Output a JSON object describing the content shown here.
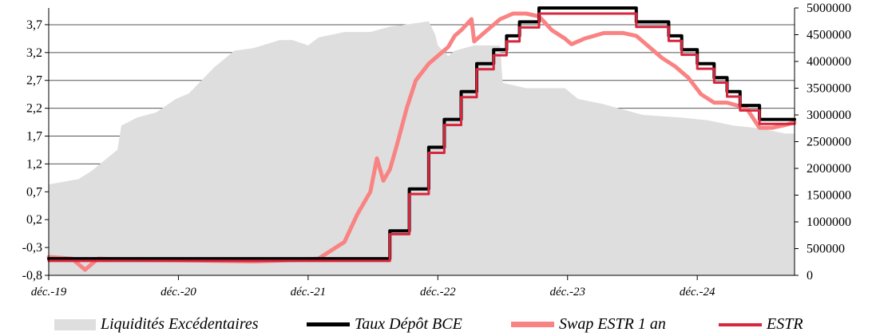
{
  "chart_data": {
    "type": "line",
    "title": "",
    "xlabel": "",
    "ylabel": "",
    "y_left": {
      "ylim": [
        -0.8,
        4.0
      ],
      "ticks": [
        "-0,8",
        "-0,3",
        "0,2",
        "0,7",
        "1,2",
        "1,7",
        "2,2",
        "2,7",
        "3,2",
        "3,7"
      ]
    },
    "y_right": {
      "ylim": [
        0,
        5000000
      ],
      "ticks": [
        "0",
        "500000",
        "1000000",
        "1500000",
        "2000000",
        "2500000",
        "3000000",
        "3500000",
        "4000000",
        "4500000",
        "5000000"
      ]
    },
    "x_range": [
      2019.92,
      2025.67
    ],
    "x_ticks": [
      {
        "label": "déc.-19",
        "x": 2019.92
      },
      {
        "label": "déc.-20",
        "x": 2020.92
      },
      {
        "label": "déc.-21",
        "x": 2021.92
      },
      {
        "label": "déc.-22",
        "x": 2022.92
      },
      {
        "label": "déc.-23",
        "x": 2023.92
      },
      {
        "label": "déc.-24",
        "x": 2024.92
      }
    ],
    "grid": true,
    "legend": "bottom",
    "series": [
      {
        "name": "Liquidités Excédentaires",
        "type": "area",
        "axis": "right",
        "color": "#dedede",
        "points": [
          [
            2019.92,
            1700000
          ],
          [
            2020.15,
            1800000
          ],
          [
            2020.25,
            1950000
          ],
          [
            2020.45,
            2350000
          ],
          [
            2020.48,
            2800000
          ],
          [
            2020.6,
            2950000
          ],
          [
            2020.75,
            3050000
          ],
          [
            2020.9,
            3300000
          ],
          [
            2021.0,
            3400000
          ],
          [
            2021.2,
            3900000
          ],
          [
            2021.35,
            4200000
          ],
          [
            2021.5,
            4250000
          ],
          [
            2021.7,
            4400000
          ],
          [
            2021.8,
            4400000
          ],
          [
            2021.92,
            4300000
          ],
          [
            2022.0,
            4450000
          ],
          [
            2022.2,
            4550000
          ],
          [
            2022.4,
            4550000
          ],
          [
            2022.55,
            4650000
          ],
          [
            2022.7,
            4700000
          ],
          [
            2022.85,
            4750000
          ],
          [
            2022.9,
            4500000
          ],
          [
            2022.92,
            4300000
          ],
          [
            2023.0,
            4100000
          ],
          [
            2023.05,
            4200000
          ],
          [
            2023.2,
            4300000
          ],
          [
            2023.4,
            4300000
          ],
          [
            2023.42,
            3600000
          ],
          [
            2023.6,
            3500000
          ],
          [
            2023.9,
            3500000
          ],
          [
            2024.0,
            3300000
          ],
          [
            2024.2,
            3200000
          ],
          [
            2024.5,
            3000000
          ],
          [
            2024.8,
            2950000
          ],
          [
            2025.0,
            2900000
          ],
          [
            2025.2,
            2800000
          ],
          [
            2025.4,
            2750000
          ],
          [
            2025.6,
            2650000
          ],
          [
            2025.67,
            2650000
          ]
        ]
      },
      {
        "name": "Taux Dépôt BCE",
        "type": "step",
        "axis": "left",
        "color": "#000000",
        "points": [
          [
            2019.92,
            -0.5
          ],
          [
            2022.55,
            -0.5
          ],
          [
            2022.55,
            0.0
          ],
          [
            2022.7,
            0.0
          ],
          [
            2022.7,
            0.75
          ],
          [
            2022.85,
            0.75
          ],
          [
            2022.85,
            1.5
          ],
          [
            2022.97,
            1.5
          ],
          [
            2022.97,
            2.0
          ],
          [
            2023.1,
            2.0
          ],
          [
            2023.1,
            2.5
          ],
          [
            2023.22,
            2.5
          ],
          [
            2023.22,
            3.0
          ],
          [
            2023.35,
            3.0
          ],
          [
            2023.35,
            3.25
          ],
          [
            2023.45,
            3.25
          ],
          [
            2023.45,
            3.5
          ],
          [
            2023.55,
            3.5
          ],
          [
            2023.55,
            3.75
          ],
          [
            2023.7,
            3.75
          ],
          [
            2023.7,
            4.0
          ],
          [
            2024.45,
            4.0
          ],
          [
            2024.45,
            3.75
          ],
          [
            2024.7,
            3.75
          ],
          [
            2024.7,
            3.5
          ],
          [
            2024.8,
            3.5
          ],
          [
            2024.8,
            3.25
          ],
          [
            2024.92,
            3.25
          ],
          [
            2024.92,
            3.0
          ],
          [
            2025.05,
            3.0
          ],
          [
            2025.05,
            2.75
          ],
          [
            2025.15,
            2.75
          ],
          [
            2025.15,
            2.5
          ],
          [
            2025.25,
            2.5
          ],
          [
            2025.25,
            2.25
          ],
          [
            2025.4,
            2.25
          ],
          [
            2025.4,
            2.0
          ],
          [
            2025.67,
            2.0
          ]
        ]
      },
      {
        "name": "Swap ESTR 1 an",
        "type": "line",
        "axis": "left",
        "color": "#f98383",
        "points": [
          [
            2019.92,
            -0.47
          ],
          [
            2020.1,
            -0.5
          ],
          [
            2020.2,
            -0.7
          ],
          [
            2020.3,
            -0.5
          ],
          [
            2020.6,
            -0.52
          ],
          [
            2021.0,
            -0.53
          ],
          [
            2021.5,
            -0.55
          ],
          [
            2021.85,
            -0.52
          ],
          [
            2022.0,
            -0.5
          ],
          [
            2022.1,
            -0.35
          ],
          [
            2022.2,
            -0.2
          ],
          [
            2022.3,
            0.3
          ],
          [
            2022.4,
            0.7
          ],
          [
            2022.45,
            1.3
          ],
          [
            2022.5,
            0.9
          ],
          [
            2022.55,
            1.1
          ],
          [
            2022.6,
            1.5
          ],
          [
            2022.68,
            2.2
          ],
          [
            2022.75,
            2.7
          ],
          [
            2022.85,
            3.0
          ],
          [
            2022.95,
            3.2
          ],
          [
            2023.0,
            3.3
          ],
          [
            2023.05,
            3.5
          ],
          [
            2023.1,
            3.6
          ],
          [
            2023.18,
            3.8
          ],
          [
            2023.2,
            3.4
          ],
          [
            2023.3,
            3.6
          ],
          [
            2023.4,
            3.8
          ],
          [
            2023.5,
            3.9
          ],
          [
            2023.6,
            3.9
          ],
          [
            2023.7,
            3.85
          ],
          [
            2023.8,
            3.6
          ],
          [
            2023.9,
            3.45
          ],
          [
            2023.95,
            3.35
          ],
          [
            2024.05,
            3.45
          ],
          [
            2024.2,
            3.55
          ],
          [
            2024.35,
            3.55
          ],
          [
            2024.45,
            3.5
          ],
          [
            2024.55,
            3.3
          ],
          [
            2024.65,
            3.1
          ],
          [
            2024.75,
            2.95
          ],
          [
            2024.85,
            2.75
          ],
          [
            2024.95,
            2.45
          ],
          [
            2025.05,
            2.3
          ],
          [
            2025.15,
            2.3
          ],
          [
            2025.3,
            2.2
          ],
          [
            2025.4,
            1.85
          ],
          [
            2025.5,
            1.85
          ],
          [
            2025.6,
            1.9
          ],
          [
            2025.67,
            1.95
          ]
        ]
      },
      {
        "name": "ESTR",
        "type": "step",
        "axis": "left",
        "color": "#d7263d",
        "points": [
          [
            2019.92,
            -0.54
          ],
          [
            2022.55,
            -0.54
          ],
          [
            2022.55,
            -0.06
          ],
          [
            2022.7,
            -0.06
          ],
          [
            2022.7,
            0.66
          ],
          [
            2022.85,
            0.66
          ],
          [
            2022.85,
            1.4
          ],
          [
            2022.97,
            1.4
          ],
          [
            2022.97,
            1.9
          ],
          [
            2023.1,
            1.9
          ],
          [
            2023.1,
            2.4
          ],
          [
            2023.22,
            2.4
          ],
          [
            2023.22,
            2.9
          ],
          [
            2023.35,
            2.9
          ],
          [
            2023.35,
            3.15
          ],
          [
            2023.45,
            3.15
          ],
          [
            2023.45,
            3.4
          ],
          [
            2023.55,
            3.4
          ],
          [
            2023.55,
            3.65
          ],
          [
            2023.7,
            3.65
          ],
          [
            2023.7,
            3.9
          ],
          [
            2024.45,
            3.9
          ],
          [
            2024.45,
            3.66
          ],
          [
            2024.7,
            3.66
          ],
          [
            2024.7,
            3.41
          ],
          [
            2024.8,
            3.41
          ],
          [
            2024.8,
            3.16
          ],
          [
            2024.92,
            3.16
          ],
          [
            2024.92,
            2.91
          ],
          [
            2025.05,
            2.91
          ],
          [
            2025.05,
            2.66
          ],
          [
            2025.15,
            2.66
          ],
          [
            2025.15,
            2.41
          ],
          [
            2025.25,
            2.41
          ],
          [
            2025.25,
            2.16
          ],
          [
            2025.4,
            2.16
          ],
          [
            2025.4,
            1.92
          ],
          [
            2025.67,
            1.92
          ]
        ]
      }
    ]
  }
}
